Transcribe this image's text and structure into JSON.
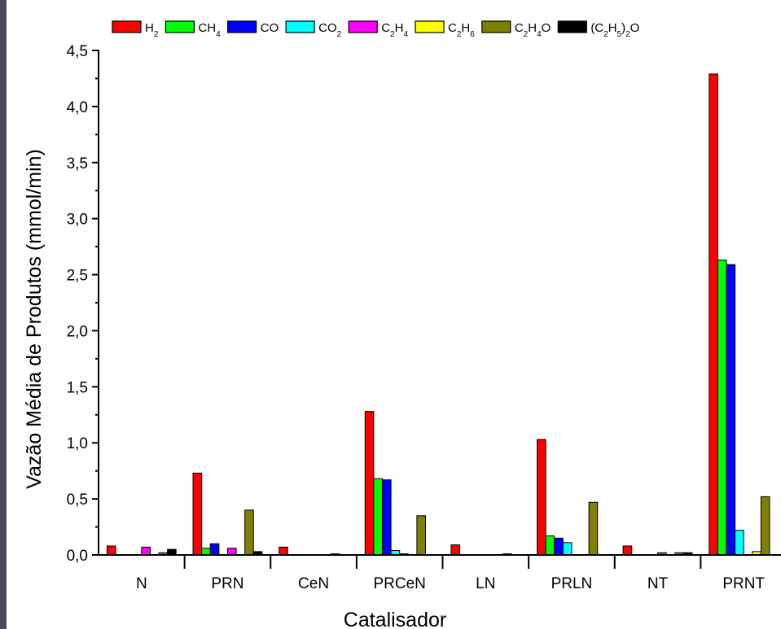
{
  "chart_data": {
    "type": "bar",
    "xlabel": "Catalisador",
    "ylabel": "Vazão Média de Produtos (mmol/min)",
    "ylim": [
      0,
      4.5
    ],
    "y_ticks": [
      "0,0",
      "0,5",
      "1,0",
      "1,5",
      "2,0",
      "2,5",
      "3,0",
      "3,5",
      "4,0",
      "4,5"
    ],
    "legend_position": "top",
    "categories": [
      "N",
      "PRN",
      "CeN",
      "PRCeN",
      "LN",
      "PRLN",
      "NT",
      "PRNT"
    ],
    "series": [
      {
        "name": "H2",
        "legend": [
          {
            "t": "H"
          },
          {
            "t": "2",
            "sub": true
          }
        ],
        "color": "#ff0000",
        "values": [
          0.08,
          0.73,
          0.07,
          1.28,
          0.09,
          1.03,
          0.08,
          4.29
        ]
      },
      {
        "name": "CH4",
        "legend": [
          {
            "t": "CH"
          },
          {
            "t": "4",
            "sub": true
          }
        ],
        "color": "#00ff00",
        "values": [
          0.0,
          0.06,
          0.0,
          0.68,
          0.0,
          0.17,
          0.0,
          2.63
        ]
      },
      {
        "name": "CO",
        "legend": [
          {
            "t": "CO"
          }
        ],
        "color": "#0000ff",
        "values": [
          0.0,
          0.1,
          0.0,
          0.67,
          0.0,
          0.15,
          0.0,
          2.59
        ]
      },
      {
        "name": "CO2",
        "legend": [
          {
            "t": "CO"
          },
          {
            "t": "2",
            "sub": true
          }
        ],
        "color": "#00ffff",
        "values": [
          0.0,
          0.0,
          0.0,
          0.04,
          0.0,
          0.11,
          0.0,
          0.22
        ]
      },
      {
        "name": "C2H4",
        "legend": [
          {
            "t": "C"
          },
          {
            "t": "2",
            "sub": true
          },
          {
            "t": "H"
          },
          {
            "t": "4",
            "sub": true
          }
        ],
        "color": "#ff00ff",
        "values": [
          0.07,
          0.06,
          0.0,
          0.01,
          0.0,
          0.0,
          0.02,
          0.0
        ]
      },
      {
        "name": "C2H6",
        "legend": [
          {
            "t": "C"
          },
          {
            "t": "2",
            "sub": true
          },
          {
            "t": "H"
          },
          {
            "t": "6",
            "sub": true
          }
        ],
        "color": "#ffff00",
        "values": [
          0.0,
          0.0,
          0.0,
          0.0,
          0.0,
          0.0,
          0.0,
          0.03
        ]
      },
      {
        "name": "C2H4O",
        "legend": [
          {
            "t": "C"
          },
          {
            "t": "2",
            "sub": true
          },
          {
            "t": "H"
          },
          {
            "t": "4",
            "sub": true
          },
          {
            "t": "O"
          }
        ],
        "color": "#808000",
        "values": [
          0.02,
          0.4,
          0.01,
          0.35,
          0.01,
          0.47,
          0.02,
          0.52
        ]
      },
      {
        "name": "(C2H5)2O",
        "legend": [
          {
            "t": "(C"
          },
          {
            "t": "2",
            "sub": true
          },
          {
            "t": "H"
          },
          {
            "t": "5",
            "sub": true
          },
          {
            "t": ")"
          },
          {
            "t": "2",
            "sub": true
          },
          {
            "t": "O"
          }
        ],
        "color": "#000000",
        "values": [
          0.05,
          0.03,
          0.0,
          0.0,
          0.0,
          0.0,
          0.02,
          0.0
        ]
      }
    ]
  }
}
